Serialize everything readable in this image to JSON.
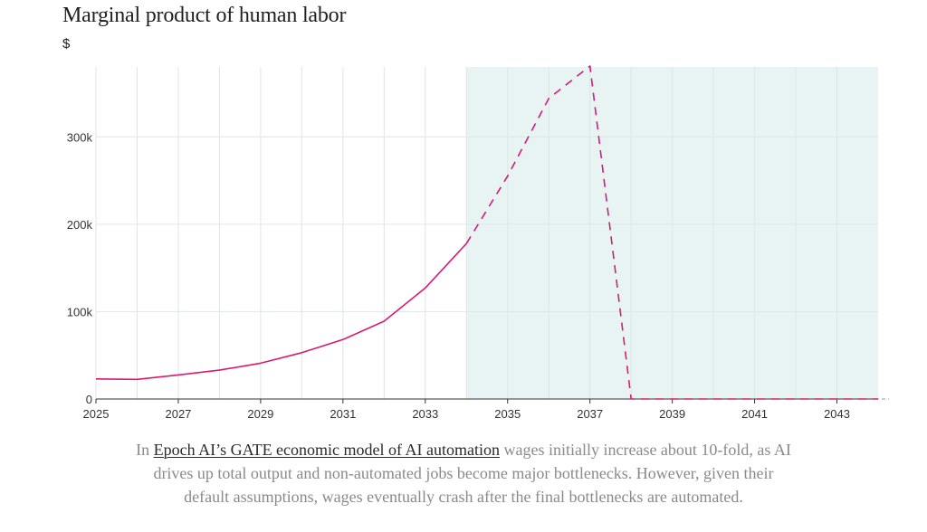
{
  "colors": {
    "line": "#d81b72",
    "shade": "#e8f4f4",
    "grid": "#dde6e6",
    "axis": "#333333",
    "caption_text": "#8a8a8a",
    "caption_link": "#2a2a2a"
  },
  "chart_data": {
    "type": "line",
    "title": "Marginal product of human labor",
    "ylabel": "$",
    "xlabel": "",
    "xlim": [
      2025,
      2044
    ],
    "ylim": [
      0,
      380000
    ],
    "x_ticks": [
      "2025",
      "2027",
      "2029",
      "2031",
      "2033",
      "2035",
      "2037",
      "2039",
      "2041",
      "2043"
    ],
    "y_ticks": [
      "0",
      "100k",
      "200k",
      "300k"
    ],
    "grid": true,
    "shaded_region": {
      "from": 2034,
      "to": 2044
    },
    "series": [
      {
        "style": "solid",
        "x": [
          2025,
          2026,
          2027,
          2028,
          2029,
          2030,
          2031,
          2032,
          2033,
          2034
        ],
        "y": [
          23000,
          22500,
          27500,
          33000,
          41000,
          53000,
          68000,
          89000,
          127000,
          178000
        ]
      },
      {
        "style": "dashed",
        "x": [
          2034,
          2035,
          2036,
          2037,
          2038,
          2039,
          2040,
          2041,
          2042,
          2043,
          2044
        ],
        "y": [
          178000,
          255000,
          344000,
          381000,
          0,
          0,
          0,
          0,
          0,
          0,
          0
        ]
      }
    ]
  },
  "caption": {
    "before": "In ",
    "link": "Epoch AI’s GATE economic model of AI automation",
    "after": " wages initially increase about 10-fold, as AI drives up total output and non-automated jobs become major bottlenecks. However, given their default assumptions, wages eventually crash after the final bottlenecks are automated."
  }
}
